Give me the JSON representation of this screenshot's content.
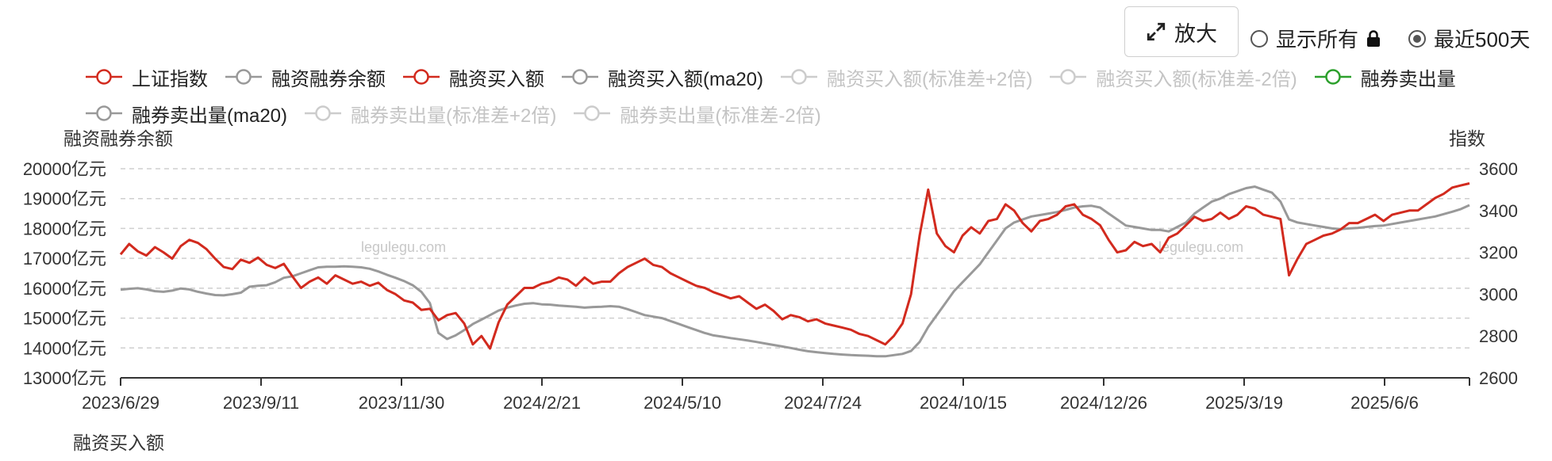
{
  "controls": {
    "zoom_label": "放大",
    "radio_all": "显示所有",
    "radio_recent": "最近500天",
    "radio_selected": "recent"
  },
  "legend": [
    {
      "name": "上证指数",
      "color": "#d22a1e",
      "active": true
    },
    {
      "name": "融资融券余额",
      "color": "#999999",
      "active": true
    },
    {
      "name": "融资买入额",
      "color": "#d22a1e",
      "active": true
    },
    {
      "name": "融资买入额(ma20)",
      "color": "#999999",
      "active": true
    },
    {
      "name": "融资买入额(标准差+2倍)",
      "color": "#cccccc",
      "active": false
    },
    {
      "name": "融资买入额(标准差-2倍)",
      "color": "#cccccc",
      "active": false
    },
    {
      "name": "融券卖出量",
      "color": "#2ca02c",
      "active": true
    },
    {
      "name": "融券卖出量(ma20)",
      "color": "#999999",
      "active": true
    },
    {
      "name": "融券卖出量(标准差+2倍)",
      "color": "#cccccc",
      "active": false
    },
    {
      "name": "融券卖出量(标准差-2倍)",
      "color": "#cccccc",
      "active": false
    }
  ],
  "watermark": "legulegu.com",
  "next_chart_title": "融资买入额",
  "chart_data": {
    "type": "line",
    "ylabel_left": "融资融券余额",
    "ylabel_right": "指数",
    "yleft_ticks": [
      "13000亿元",
      "14000亿元",
      "15000亿元",
      "16000亿元",
      "17000亿元",
      "18000亿元",
      "19000亿元",
      "20000亿元"
    ],
    "yleft_range": [
      13000,
      20000
    ],
    "yright_ticks": [
      "2600",
      "2800",
      "3000",
      "3200",
      "3400",
      "3600"
    ],
    "yright_range": [
      2600,
      3600
    ],
    "xtick_labels": [
      "2023/6/29",
      "2023/9/11",
      "2023/11/30",
      "2024/2/21",
      "2024/5/10",
      "2024/7/24",
      "2024/10/15",
      "2024/12/26",
      "2025/3/19",
      "2025/6/6"
    ],
    "grid": "dashed-horizontal",
    "series": [
      {
        "name": "上证指数",
        "axis": "right",
        "color": "#d22a1e",
        "values": [
          3190,
          3240,
          3205,
          3185,
          3225,
          3200,
          3170,
          3230,
          3260,
          3245,
          3215,
          3170,
          3130,
          3120,
          3165,
          3150,
          3175,
          3140,
          3125,
          3145,
          3085,
          3030,
          3060,
          3080,
          3050,
          3090,
          3070,
          3050,
          3060,
          3040,
          3055,
          3020,
          3000,
          2970,
          2960,
          2925,
          2930,
          2875,
          2900,
          2910,
          2860,
          2760,
          2800,
          2740,
          2865,
          2950,
          2990,
          3030,
          3030,
          3050,
          3060,
          3080,
          3070,
          3040,
          3080,
          3050,
          3060,
          3060,
          3100,
          3130,
          3150,
          3170,
          3140,
          3130,
          3100,
          3080,
          3060,
          3040,
          3030,
          3010,
          2995,
          2980,
          2990,
          2960,
          2930,
          2950,
          2920,
          2880,
          2900,
          2890,
          2870,
          2880,
          2860,
          2850,
          2840,
          2830,
          2810,
          2800,
          2780,
          2760,
          2800,
          2860,
          3000,
          3280,
          3500,
          3290,
          3230,
          3200,
          3280,
          3320,
          3290,
          3350,
          3360,
          3430,
          3400,
          3340,
          3300,
          3350,
          3360,
          3380,
          3420,
          3430,
          3380,
          3360,
          3330,
          3260,
          3200,
          3210,
          3250,
          3230,
          3240,
          3200,
          3270,
          3290,
          3330,
          3370,
          3350,
          3360,
          3390,
          3360,
          3380,
          3420,
          3410,
          3380,
          3370,
          3360,
          3090,
          3170,
          3240,
          3260,
          3280,
          3290,
          3310,
          3340,
          3340,
          3360,
          3380,
          3350,
          3380,
          3390,
          3400,
          3400,
          3430,
          3460,
          3480,
          3510,
          3520,
          3530
        ]
      },
      {
        "name": "融资融券余额",
        "axis": "left",
        "color": "#999999",
        "values": [
          15950,
          15980,
          16000,
          15960,
          15900,
          15880,
          15920,
          15990,
          15960,
          15880,
          15820,
          15770,
          15760,
          15800,
          15850,
          16050,
          16080,
          16100,
          16200,
          16350,
          16400,
          16500,
          16600,
          16700,
          16720,
          16720,
          16730,
          16720,
          16700,
          16650,
          16560,
          16450,
          16350,
          16240,
          16100,
          15880,
          15500,
          14500,
          14300,
          14420,
          14600,
          14800,
          14950,
          15100,
          15250,
          15350,
          15420,
          15480,
          15500,
          15460,
          15450,
          15420,
          15400,
          15380,
          15350,
          15370,
          15380,
          15400,
          15380,
          15300,
          15200,
          15100,
          15050,
          15000,
          14900,
          14800,
          14700,
          14600,
          14500,
          14420,
          14380,
          14330,
          14290,
          14250,
          14200,
          14150,
          14100,
          14050,
          14000,
          13940,
          13890,
          13860,
          13830,
          13800,
          13780,
          13760,
          13750,
          13740,
          13720,
          13720,
          13760,
          13800,
          13900,
          14200,
          14700,
          15100,
          15500,
          15900,
          16200,
          16500,
          16800,
          17200,
          17600,
          18000,
          18200,
          18300,
          18400,
          18450,
          18500,
          18550,
          18620,
          18700,
          18740,
          18760,
          18700,
          18500,
          18300,
          18100,
          18050,
          18000,
          17950,
          17950,
          17900,
          18050,
          18200,
          18500,
          18700,
          18900,
          19000,
          19150,
          19250,
          19350,
          19400,
          19300,
          19200,
          18900,
          18300,
          18200,
          18150,
          18100,
          18050,
          18000,
          17980,
          18000,
          18020,
          18050,
          18080,
          18100,
          18150,
          18200,
          18250,
          18300,
          18350,
          18400,
          18480,
          18560,
          18650,
          18780
        ]
      }
    ]
  }
}
